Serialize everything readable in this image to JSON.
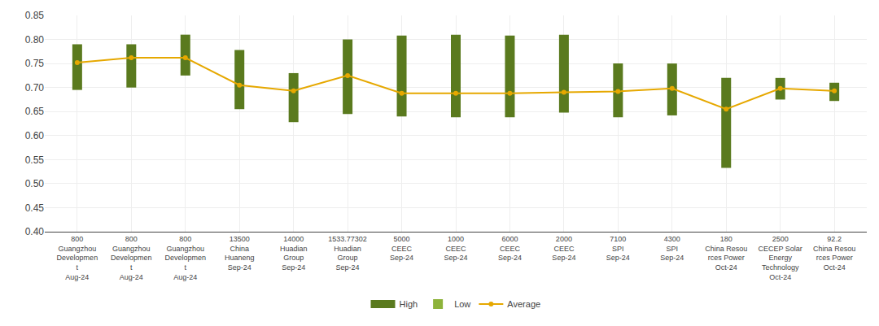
{
  "chart_data": {
    "type": "bar",
    "categories": [
      "800\nGuangzhou\nDevelopmen\nt\nAug-24",
      "800\nGuangzhou\nDevelopmen\nt\nAug-24",
      "800\nGuangzhou\nDevelopmen\nt\nAug-24",
      "13500\nChina\nHuaneng\nSep-24",
      "14000\nHuadian\nGroup\nSep-24",
      "1533.77302\nHuadian\nGroup\nSep-24",
      "5000\nCEEC\nSep-24",
      "1000\nCEEC\nSep-24",
      "6000\nCEEC\nSep-24",
      "2000\nCEEC\nSep-24",
      "7100\nSPI\nSep-24",
      "4300\nSPI\nSep-24",
      "180\nChina Resou\nrces Power\nOct-24",
      "2500\nCECEP Solar\nEnergy\nTechnology\nOct-24",
      "92.2\nChina Resou\nrces Power\nOct-24"
    ],
    "series": [
      {
        "name": "High",
        "type": "bar",
        "color": "#5a7a1e",
        "values": [
          0.79,
          0.79,
          0.81,
          0.778,
          0.73,
          0.8,
          0.808,
          0.81,
          0.808,
          0.81,
          0.75,
          0.75,
          0.72,
          0.72,
          0.71
        ]
      },
      {
        "name": "Low",
        "type": "bar",
        "color": "#8db33a",
        "values": [
          0.695,
          0.7,
          0.725,
          0.655,
          0.628,
          0.645,
          0.64,
          0.638,
          0.638,
          0.648,
          0.638,
          0.642,
          0.533,
          0.675,
          0.672
        ]
      },
      {
        "name": "Average",
        "type": "line",
        "color": "#e6a800",
        "marker": "circle",
        "values": [
          0.752,
          0.762,
          0.762,
          0.705,
          0.693,
          0.725,
          0.688,
          0.688,
          0.688,
          0.69,
          0.692,
          0.698,
          0.655,
          0.698,
          0.693
        ]
      }
    ],
    "ylim": [
      0.4,
      0.85
    ],
    "yticks": [
      {
        "value": 0.4,
        "label": "0.40"
      },
      0.45,
      {
        "value": 0.5,
        "label": "0.50"
      },
      0.55,
      {
        "value": 0.6,
        "label": "0.60"
      },
      0.65,
      {
        "value": 0.7,
        "label": "0.70"
      },
      0.75,
      {
        "value": 0.8,
        "label": "0.80"
      },
      0.85
    ],
    "grid": true,
    "legend": "bottom"
  }
}
